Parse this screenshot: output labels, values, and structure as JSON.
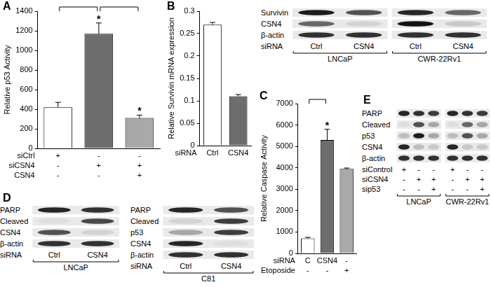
{
  "panels": [
    "A",
    "B",
    "C",
    "D",
    "E"
  ],
  "chart_data": [
    {
      "type": "bar",
      "y_label": "Relative p53 Activity",
      "categories": [
        null,
        null,
        null
      ],
      "values": [
        420,
        1170,
        310
      ],
      "errors": [
        50,
        110,
        30
      ],
      "colors": [
        "#ffffff",
        "#6d6d6d",
        "#a9a9a9"
      ],
      "ylim": [
        0,
        1400
      ],
      "yticks": [
        0,
        200,
        400,
        600,
        800,
        1000,
        1200,
        1400
      ],
      "grid": false,
      "significance": [
        null,
        "*",
        "*"
      ],
      "brackets": [
        [
          0,
          1
        ],
        [
          1,
          2
        ]
      ],
      "conditions": [
        {
          "label": "siCtrl",
          "values": [
            "+",
            "-",
            "-"
          ]
        },
        {
          "label": "siCSN4",
          "values": [
            "-",
            "+",
            "+"
          ]
        },
        {
          "label": "CSN4",
          "values": [
            "-",
            "-",
            "+"
          ]
        }
      ]
    },
    {
      "type": "bar",
      "y_label": "Relative Survivin mRNA expression",
      "categories": [
        null,
        null
      ],
      "values": [
        0.27,
        0.11
      ],
      "errors": [
        0.005,
        0.004
      ],
      "colors": [
        "#ffffff",
        "#6d6d6d"
      ],
      "ylim": [
        0,
        0.3
      ],
      "yticks": [
        0,
        0.05,
        0.1,
        0.15,
        0.2,
        0.25,
        0.3
      ],
      "grid": false,
      "significance": [
        null,
        null
      ],
      "brackets": [],
      "conditions": [
        {
          "label": "siRNA",
          "values": [
            "Ctrl",
            "CSN4"
          ]
        }
      ]
    },
    {
      "type": "bar",
      "y_label": "Relative Caspase Activity",
      "categories": [
        null,
        null,
        null
      ],
      "values": [
        700,
        5300,
        3950
      ],
      "errors": [
        50,
        500,
        40
      ],
      "colors": [
        "#ffffff",
        "#6d6d6d",
        "#a9a9a9"
      ],
      "ylim": [
        0,
        7000
      ],
      "yticks": [
        0,
        1000,
        2000,
        3000,
        4000,
        5000,
        6000,
        7000
      ],
      "grid": false,
      "significance": [
        null,
        "*",
        null
      ],
      "brackets": [
        [
          0,
          1
        ]
      ],
      "conditions": [
        {
          "label": "siRNA",
          "values": [
            "C",
            "CSN4",
            "-"
          ]
        },
        {
          "label": "Etoposide",
          "values": [
            "-",
            "-",
            "+"
          ]
        }
      ]
    }
  ],
  "blots": [
    {
      "row_labels": [
        "Survivin",
        "CSN4",
        "β-actin"
      ],
      "conditions": [
        {
          "label": "siRNA",
          "values": [
            "Ctrl",
            "CSN4"
          ]
        }
      ],
      "groups": [
        {
          "name": "LNCaP",
          "bands": [
            [
              0.95,
              0.7
            ],
            [
              0.6,
              0.1
            ],
            [
              0.85,
              0.85
            ]
          ]
        },
        {
          "name": "CWR-22Rv1",
          "bands": [
            [
              0.9,
              0.6
            ],
            [
              1,
              0.15
            ],
            [
              0.85,
              0.85
            ]
          ]
        }
      ]
    },
    {
      "row_labels": [
        "PARP",
        "Cleaved",
        "CSN4",
        "β-actin"
      ],
      "conditions": [
        {
          "label": "siRNA",
          "values": [
            "Ctrl",
            "CSN4"
          ]
        }
      ],
      "groups": [
        {
          "name": "LNCaP",
          "bands": [
            [
              0.9,
              0.85
            ],
            [
              0.05,
              0.75
            ],
            [
              0.7,
              0.1
            ],
            [
              0.85,
              0.85
            ]
          ]
        }
      ]
    },
    {
      "row_labels": [
        "PARP",
        "Cleaved",
        "p53",
        "CSN4",
        "β-actin"
      ],
      "conditions": [
        {
          "label": "siRNA",
          "values": [
            "Ctrl",
            "CSN4"
          ]
        }
      ],
      "groups": [
        {
          "name": "C81",
          "bands": [
            [
              0.9,
              0.7
            ],
            [
              0.1,
              0.8
            ],
            [
              0.3,
              0.8
            ],
            [
              0.9,
              0.05
            ],
            [
              0.85,
              0.85
            ]
          ]
        }
      ]
    },
    {
      "row_labels": [
        "PARP",
        "Cleaved",
        "p53",
        "CSN4",
        "β-actin"
      ],
      "conditions": [
        {
          "label": "siControl",
          "values": [
            "+",
            "-",
            "-"
          ]
        },
        {
          "label": "siCSN4",
          "values": [
            "-",
            "+",
            "+"
          ]
        },
        {
          "label": "sip53",
          "values": [
            "-",
            "-",
            "+"
          ]
        }
      ],
      "groups": [
        {
          "name": "LNCaP",
          "bands": [
            [
              0.9,
              0.85,
              0.8
            ],
            [
              0.05,
              0.7,
              0.3
            ],
            [
              0.2,
              0.95,
              0.3
            ],
            [
              0.9,
              0.2,
              0.15
            ],
            [
              0.85,
              0.85,
              0.85
            ]
          ]
        },
        {
          "name": "CWR-22Rv1",
          "bands": [
            [
              0.9,
              0.85,
              0.8
            ],
            [
              0.05,
              0.6,
              0.3
            ],
            [
              0.2,
              0.7,
              0.3
            ],
            [
              0.9,
              0.15,
              0.15
            ],
            [
              0.85,
              0.85,
              0.85
            ]
          ]
        }
      ]
    }
  ]
}
